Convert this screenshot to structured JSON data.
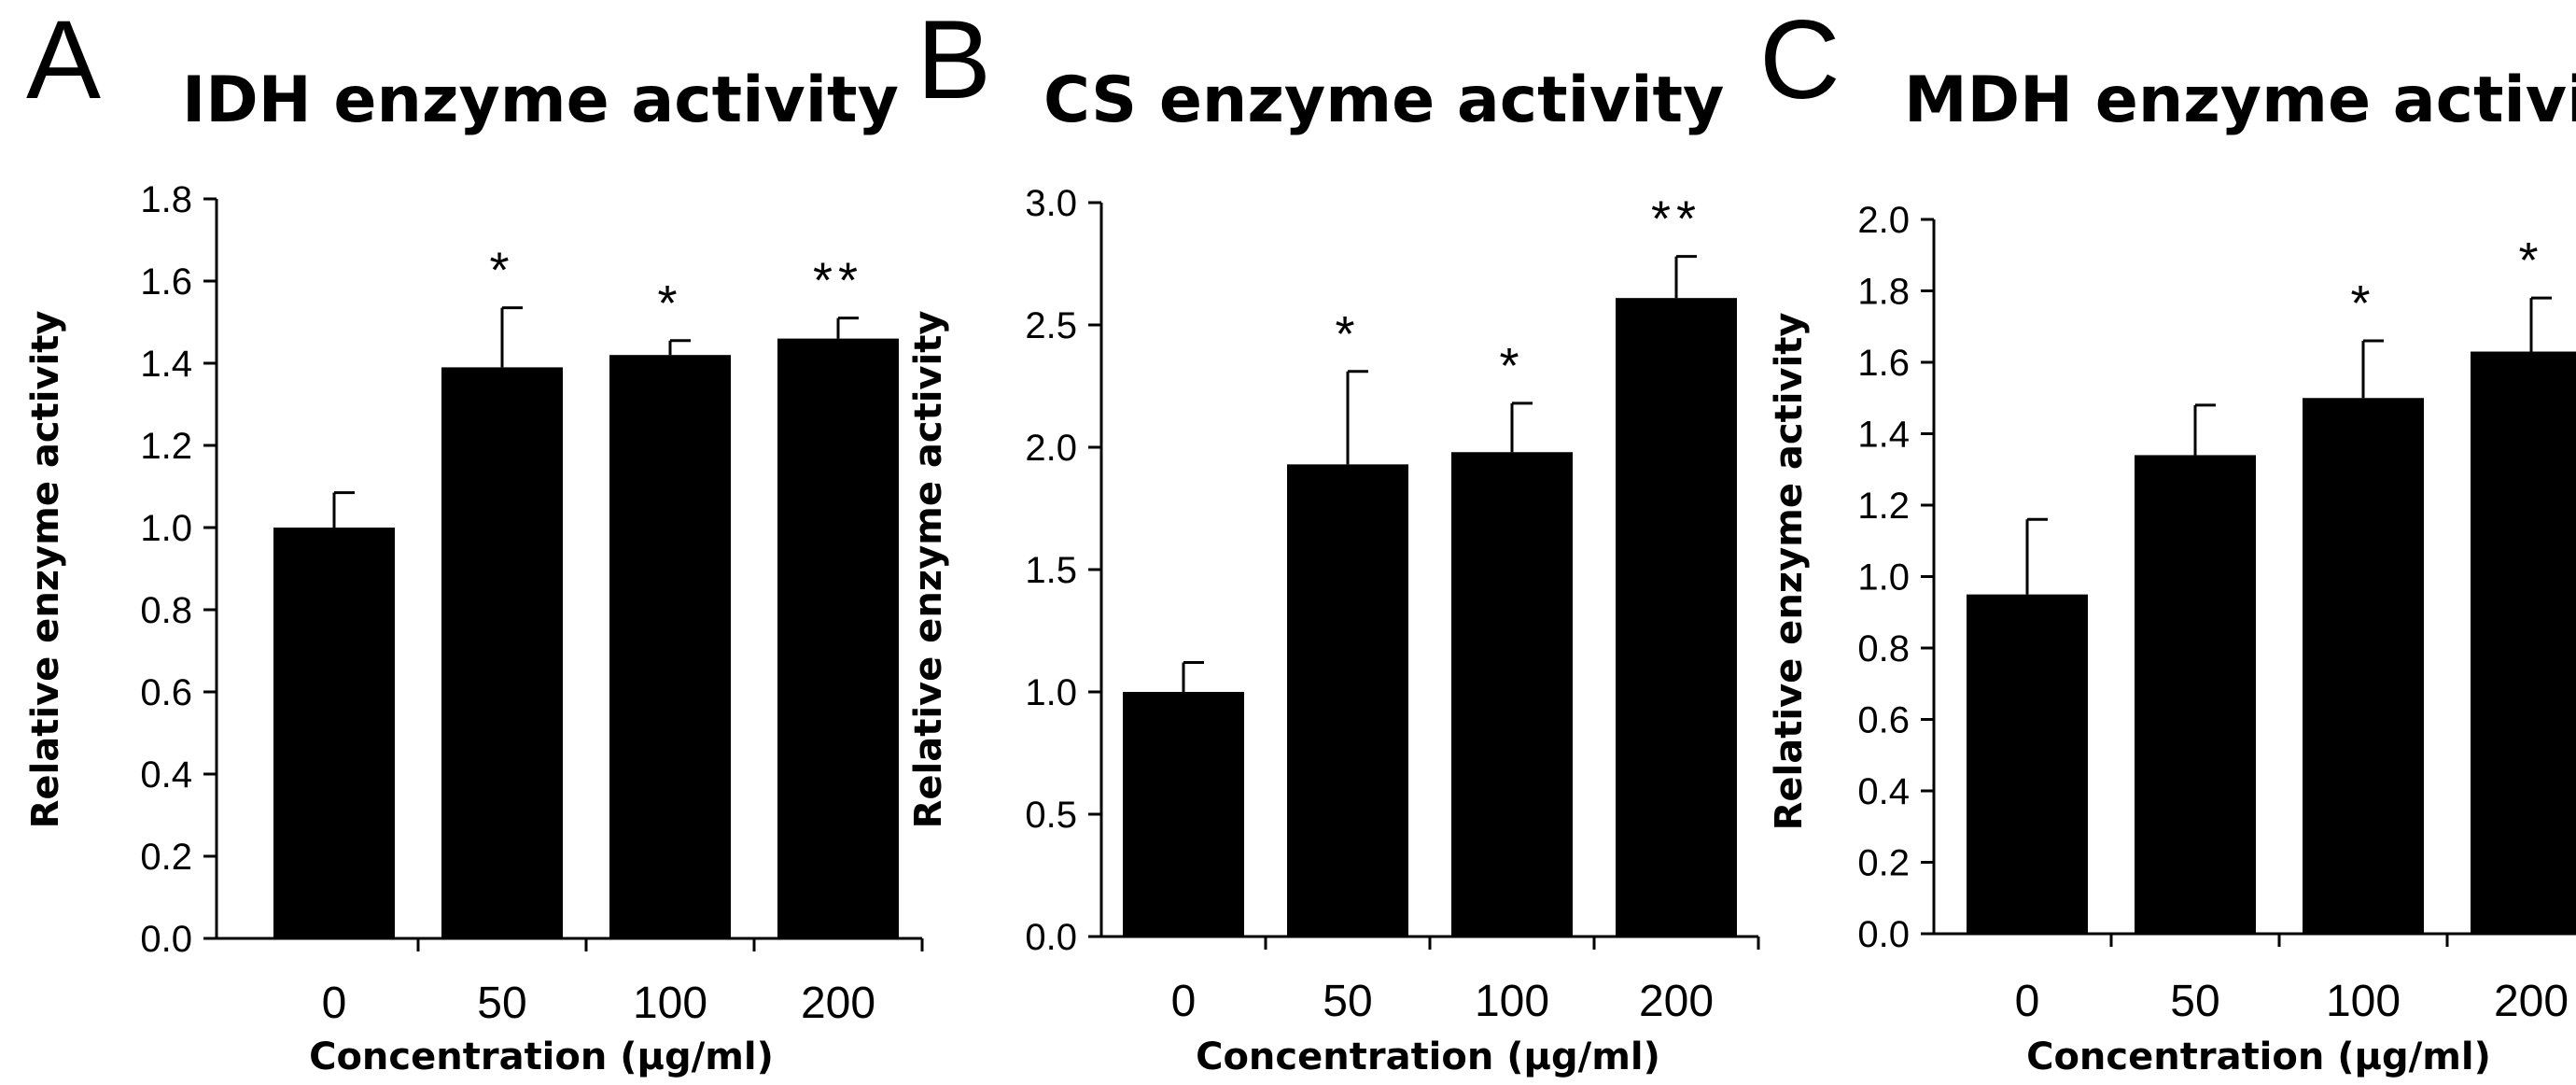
{
  "chart_data": [
    {
      "type": "bar",
      "panel_letter": "A",
      "title": "IDH enzyme activity",
      "xlabel": "Concentration (μg/ml)",
      "ylabel": "Relative enzyme activity",
      "categories": [
        "0",
        "50",
        "100",
        "200"
      ],
      "values": [
        1.0,
        1.39,
        1.42,
        1.46
      ],
      "errors": [
        0.085,
        0.145,
        0.035,
        0.05
      ],
      "significance": [
        "",
        "*",
        "*",
        "**"
      ],
      "ylim": [
        0,
        1.8
      ],
      "yticks": [
        "0.0",
        "0.2",
        "0.4",
        "0.6",
        "0.8",
        "1.0",
        "1.2",
        "1.4",
        "1.6",
        "1.8"
      ],
      "grid": false,
      "legend": "none"
    },
    {
      "type": "bar",
      "panel_letter": "B",
      "title": "CS enzyme activity",
      "xlabel": "Concentration (μg/ml)",
      "ylabel": "Relative enzyme activity",
      "categories": [
        "0",
        "50",
        "100",
        "200"
      ],
      "values": [
        1.0,
        1.93,
        1.98,
        2.61
      ],
      "errors": [
        0.12,
        0.38,
        0.2,
        0.17
      ],
      "significance": [
        "",
        "*",
        "*",
        "**"
      ],
      "ylim": [
        0,
        3.0
      ],
      "yticks": [
        "0.0",
        "0.5",
        "1.0",
        "1.5",
        "2.0",
        "2.5",
        "3.0"
      ],
      "grid": false,
      "legend": "none"
    },
    {
      "type": "bar",
      "panel_letter": "C",
      "title": "MDH enzyme activity",
      "xlabel": "Concentration (μg/ml)",
      "ylabel": "Relative enzyme activity",
      "categories": [
        "0",
        "50",
        "100",
        "200"
      ],
      "values": [
        0.95,
        1.34,
        1.5,
        1.63
      ],
      "errors": [
        0.21,
        0.14,
        0.16,
        0.15
      ],
      "significance": [
        "",
        "",
        "*",
        "*"
      ],
      "ylim": [
        0,
        2.0
      ],
      "yticks": [
        "0.0",
        "0.2",
        "0.4",
        "0.6",
        "0.8",
        "1.0",
        "1.2",
        "1.4",
        "1.6",
        "1.8",
        "2.0"
      ],
      "grid": false,
      "legend": "none"
    }
  ]
}
